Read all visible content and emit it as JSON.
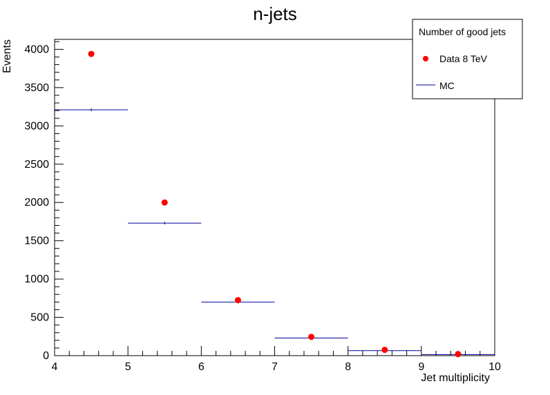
{
  "chart_data": {
    "type": "scatter",
    "title": "n-jets",
    "xlabel": "Jet multiplicity",
    "ylabel": "Events",
    "xlim": [
      4,
      10
    ],
    "ylim": [
      0,
      4130
    ],
    "x_ticks": [
      4,
      5,
      6,
      7,
      8,
      9,
      10
    ],
    "y_ticks": [
      0,
      500,
      1000,
      1500,
      2000,
      2500,
      3000,
      3500,
      4000
    ],
    "x_tick_labels": [
      "4",
      "5",
      "6",
      "7",
      "8",
      "9",
      "10"
    ],
    "y_tick_labels": [
      "0",
      "500",
      "1000",
      "1500",
      "2000",
      "2500",
      "3000",
      "3500",
      "4000"
    ],
    "bin_edges": [
      4,
      5,
      6,
      7,
      8,
      9,
      10
    ],
    "legend": {
      "title": "Number of good jets",
      "position": "top-right",
      "entries": [
        "Data 8 TeV",
        "MC"
      ]
    },
    "series": [
      {
        "name": "Data 8 TeV",
        "kind": "points",
        "color": "#ff0000",
        "x": [
          4.5,
          5.5,
          6.5,
          7.5,
          8.5,
          9.5
        ],
        "values": [
          3940,
          2000,
          725,
          245,
          75,
          20
        ]
      },
      {
        "name": "MC",
        "kind": "histogram",
        "color": "#000099",
        "x": [
          4.5,
          5.5,
          6.5,
          7.5,
          8.5,
          9.5
        ],
        "values": [
          3210,
          1730,
          700,
          230,
          65,
          15
        ]
      }
    ]
  }
}
